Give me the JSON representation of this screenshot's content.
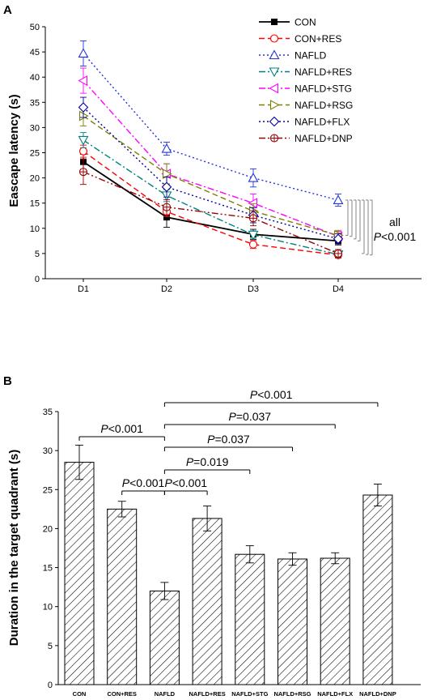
{
  "chart_data": [
    {
      "type": "line",
      "panel_label": "A",
      "ylabel": "Eascape latency (s)",
      "xlabel": "",
      "categories": [
        "D1",
        "D2",
        "D3",
        "D4"
      ],
      "ylim": [
        0,
        50
      ],
      "yticks": [
        0,
        5,
        10,
        15,
        20,
        25,
        30,
        35,
        40,
        45,
        50
      ],
      "legend_position": "top-right",
      "annotation": {
        "line1": "all",
        "p": "P",
        "rest": "<0.001"
      },
      "series": [
        {
          "name": "CON",
          "color": "#000000",
          "dash": "solid",
          "marker": "square-filled",
          "values": [
            23.2,
            12.2,
            8.8,
            7.5
          ],
          "errors": [
            1.5,
            2.0,
            1.0,
            0.8
          ]
        },
        {
          "name": "CON+RES",
          "color": "#ff0000",
          "dash": "dash",
          "marker": "circle",
          "values": [
            25.3,
            13.3,
            6.8,
            4.7
          ],
          "errors": [
            1.2,
            1.0,
            0.8,
            0.6
          ]
        },
        {
          "name": "NAFLD",
          "color": "#2233dd",
          "dash": "dot",
          "marker": "triangle-up",
          "values": [
            44.7,
            25.8,
            20.0,
            15.6
          ],
          "errors": [
            2.5,
            1.3,
            1.8,
            1.2
          ]
        },
        {
          "name": "NAFLD+RES",
          "color": "#008080",
          "dash": "dashdot",
          "marker": "triangle-down",
          "values": [
            27.5,
            16.5,
            8.7,
            4.8
          ],
          "errors": [
            1.5,
            1.2,
            0.8,
            0.5
          ]
        },
        {
          "name": "NAFLD+STG",
          "color": "#ff00ff",
          "dash": "dashdot",
          "marker": "tri-left",
          "values": [
            39.3,
            20.8,
            15.0,
            8.4
          ],
          "errors": [
            2.5,
            2.0,
            1.8,
            1.0
          ]
        },
        {
          "name": "NAFLD+RSG",
          "color": "#808000",
          "dash": "dash",
          "marker": "tri-right",
          "values": [
            32.3,
            20.8,
            13.4,
            8.6
          ],
          "errors": [
            2.0,
            2.0,
            1.5,
            1.0
          ]
        },
        {
          "name": "NAFLD+FLX",
          "color": "#000099",
          "dash": "dot",
          "marker": "diamond",
          "values": [
            34.0,
            18.2,
            12.6,
            7.9
          ],
          "errors": [
            2.0,
            2.0,
            1.5,
            1.0
          ]
        },
        {
          "name": "NAFLD+DNP",
          "color": "#990000",
          "dash": "dashdotdot",
          "marker": "circle-plus",
          "values": [
            21.2,
            14.2,
            12.0,
            5.0
          ],
          "errors": [
            2.5,
            1.5,
            1.5,
            0.8
          ]
        }
      ]
    },
    {
      "type": "bar",
      "panel_label": "B",
      "ylabel": "Duration in the target quadrant (s)",
      "xlabel": "",
      "categories": [
        "CON",
        "CON+RES",
        "NAFLD",
        "NAFLD+RES",
        "NAFLD+STG",
        "NAFLD+RSG",
        "NAFLD+FLX",
        "NAFLD+DNP"
      ],
      "values": [
        28.5,
        22.5,
        12.0,
        21.3,
        16.7,
        16.1,
        16.2,
        24.3
      ],
      "errors": [
        2.2,
        1.0,
        1.1,
        1.6,
        1.1,
        0.8,
        0.7,
        1.4
      ],
      "ylim": [
        0,
        35
      ],
      "yticks": [
        0,
        5,
        10,
        15,
        20,
        25,
        30,
        35
      ],
      "fill": "diagonal hatch",
      "comparisons": [
        {
          "from": "CON",
          "to": "NAFLD",
          "p": "P",
          "text": "<0.001"
        },
        {
          "from": "CON+RES",
          "to": "NAFLD",
          "p": "P",
          "text": "<0.001"
        },
        {
          "from": "NAFLD",
          "to": "NAFLD+RES",
          "p": "P",
          "text": "<0.001"
        },
        {
          "from": "NAFLD",
          "to": "NAFLD+STG",
          "p": "P",
          "text": "=0.019"
        },
        {
          "from": "NAFLD",
          "to": "NAFLD+RSG",
          "p": "P",
          "text": "=0.037"
        },
        {
          "from": "NAFLD",
          "to": "NAFLD+FLX",
          "p": "P",
          "text": "=0.037"
        },
        {
          "from": "NAFLD",
          "to": "NAFLD+DNP",
          "p": "P",
          "text": "<0.001"
        }
      ]
    }
  ]
}
